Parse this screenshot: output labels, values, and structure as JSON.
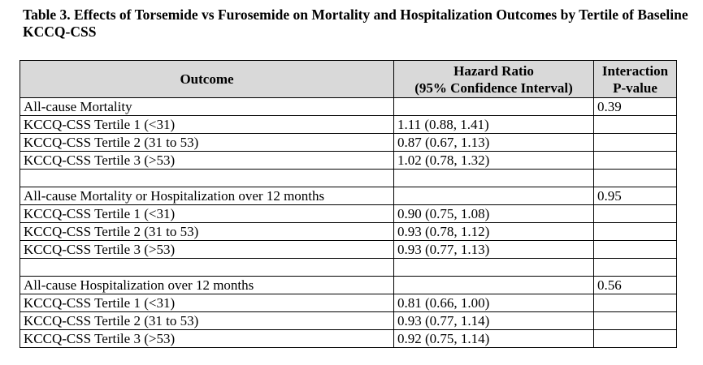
{
  "caption": "Table 3. Effects of Torsemide vs Furosemide on Mortality and Hospitalization Outcomes by Tertile of Baseline KCCQ-CSS",
  "headers": {
    "outcome": "Outcome",
    "hr_line1": "Hazard Ratio",
    "hr_line2": "(95% Confidence Interval)",
    "p_line1": "Interaction",
    "p_line2": "P-value"
  },
  "groups": [
    {
      "outcome": "All-cause Mortality",
      "p_value": "0.39",
      "rows": [
        {
          "label": "KCCQ-CSS Tertile 1 (<31)",
          "hr": "1.11 (0.88, 1.41)"
        },
        {
          "label": "KCCQ-CSS Tertile 2 (31 to 53)",
          "hr": "0.87 (0.67, 1.13)"
        },
        {
          "label": "KCCQ-CSS Tertile 3 (>53)",
          "hr": "1.02 (0.78, 1.32)"
        }
      ]
    },
    {
      "outcome": "All-cause Mortality or Hospitalization over 12 months",
      "p_value": "0.95",
      "rows": [
        {
          "label": "KCCQ-CSS Tertile 1 (<31)",
          "hr": "0.90 (0.75, 1.08)"
        },
        {
          "label": "KCCQ-CSS Tertile 2 (31 to 53)",
          "hr": "0.93 (0.78, 1.12)"
        },
        {
          "label": "KCCQ-CSS Tertile 3 (>53)",
          "hr": "0.93 (0.77, 1.13)"
        }
      ]
    },
    {
      "outcome": "All-cause Hospitalization over 12 months",
      "p_value": "0.56",
      "rows": [
        {
          "label": "KCCQ-CSS Tertile 1 (<31)",
          "hr": "0.81 (0.66, 1.00)"
        },
        {
          "label": "KCCQ-CSS Tertile 2 (31 to 53)",
          "hr": "0.93 (0.77, 1.14)"
        },
        {
          "label": "KCCQ-CSS Tertile 3 (>53)",
          "hr": "0.92 (0.75, 1.14)"
        }
      ]
    }
  ]
}
